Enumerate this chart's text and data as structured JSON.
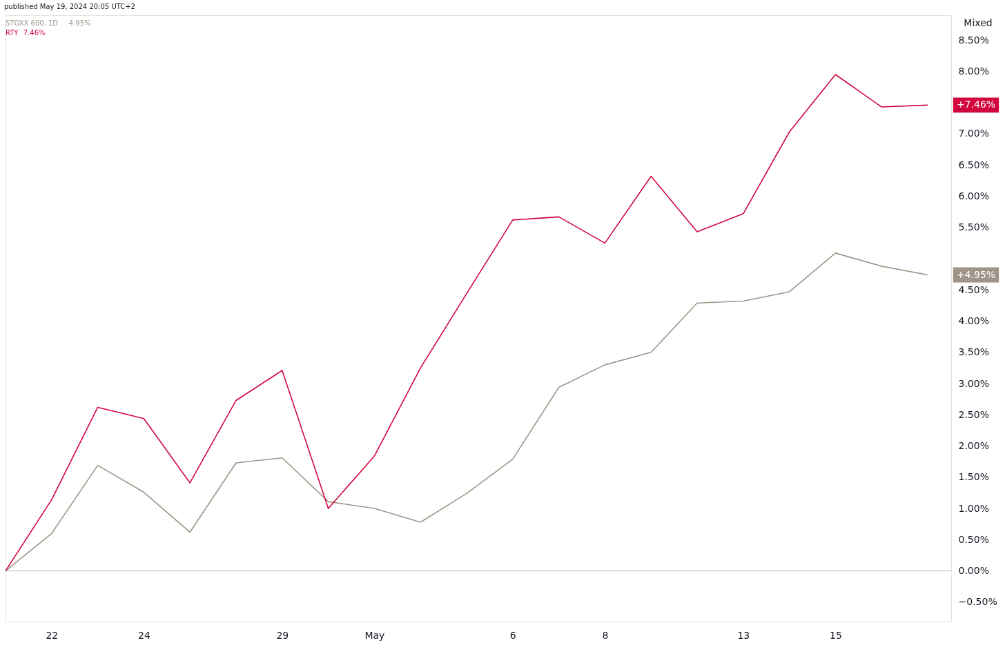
{
  "chart_data": {
    "type": "line",
    "subtitle": "published May 19, 2024 20:05 UTC+2",
    "categories": [
      null,
      "22",
      null,
      "24",
      null,
      null,
      "29",
      null,
      "May",
      null,
      null,
      "6",
      null,
      "8",
      null,
      null,
      "13",
      null,
      "15",
      null,
      null
    ],
    "series": [
      {
        "name": "STOXX 600, 1D",
        "color": "#a09488",
        "values": [
          0,
          0.6,
          1.69,
          1.26,
          0.62,
          1.73,
          1.81,
          1.11,
          1.0,
          0.78,
          1.24,
          1.79,
          2.94,
          3.3,
          3.5,
          4.29,
          4.32,
          4.47,
          5.09,
          4.88,
          4.74
        ]
      },
      {
        "name": "RTY",
        "color": "#d1063c",
        "values": [
          0,
          1.14,
          2.62,
          2.44,
          1.41,
          2.73,
          3.21,
          1.0,
          1.84,
          3.25,
          4.44,
          5.62,
          5.67,
          5.25,
          6.32,
          5.43,
          5.72,
          7.03,
          7.95,
          7.43,
          7.46
        ]
      }
    ],
    "ylim": [
      -0.8,
      8.9
    ],
    "yticks": [
      {
        "value": -0.5,
        "label": "−0.50%"
      },
      {
        "value": 0,
        "label": "0.00%"
      },
      {
        "value": 0.5,
        "label": "0.50%"
      },
      {
        "value": 1,
        "label": "1.00%"
      },
      {
        "value": 1.5,
        "label": "1.50%"
      },
      {
        "value": 2,
        "label": "2.00%"
      },
      {
        "value": 2.5,
        "label": "2.50%"
      },
      {
        "value": 3,
        "label": "3.00%"
      },
      {
        "value": 3.5,
        "label": "3.50%"
      },
      {
        "value": 4,
        "label": "4.00%"
      },
      {
        "value": 4.5,
        "label": "4.50%"
      },
      {
        "value": 5.5,
        "label": "5.50%"
      },
      {
        "value": 6,
        "label": "6.00%"
      },
      {
        "value": 6.5,
        "label": "6.50%"
      },
      {
        "value": 7,
        "label": "7.00%"
      },
      {
        "value": 8,
        "label": "8.00%"
      },
      {
        "value": 8.5,
        "label": "8.50%"
      }
    ],
    "ref_lines": [
      {
        "axis": "y",
        "value": 0,
        "color": "#b2b5be"
      }
    ],
    "annotations": [
      "4.95%",
      "7.46%",
      "+4.95%",
      "+7.46%",
      "Mixed"
    ],
    "legend": "top left",
    "marker": "none",
    "line_style": "solid",
    "grid": false
  }
}
